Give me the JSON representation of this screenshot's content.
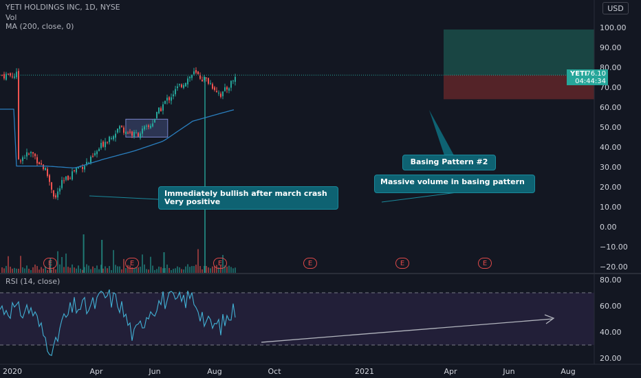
{
  "legend": {
    "symbol_line": "YETI HOLDINGS INC, 1D, NYSE",
    "vol_line": "Vol",
    "ma_line": "MA (200, close, 0)",
    "rsi_line": "RSI (14, close)"
  },
  "currency": "USD",
  "price_tag": {
    "symbol": "YETI",
    "price": "76.10",
    "countdown": "04:44:34"
  },
  "annotations": {
    "basing_pattern": "Basing Pattern #2",
    "massive_volume": "Massive volume in basing pattern",
    "bullish_line1": "Immediately bullish after march crash",
    "bullish_line2": "Very positive"
  },
  "earnings_marker": "E",
  "colors": {
    "up": "#26a69a",
    "down": "#ef5350",
    "ma": "#2a7fbf",
    "rsi": "#42b2d6",
    "background": "#131722"
  },
  "chart_data": [
    {
      "type": "line",
      "title": "YETI HOLDINGS INC, 1D, NYSE",
      "series": [
        {
          "name": "YETI",
          "x": [
            "2020-01",
            "2020-02",
            "2020-03",
            "2020-03-20",
            "2020-04",
            "2020-05",
            "2020-06",
            "2020-07",
            "2020-08",
            "2020-09",
            "2020-10",
            "2020-11",
            "2020-12",
            "2021-01",
            "2021-02",
            "2021-03",
            "2021-04"
          ],
          "values": [
            34,
            37,
            28,
            14,
            21,
            29,
            33,
            43,
            50,
            46,
            50,
            62,
            70,
            77,
            73,
            66,
            76.1
          ]
        },
        {
          "name": "MA (200, close, 0)",
          "x": [
            "2020-01",
            "2020-03",
            "2020-05",
            "2020-07",
            "2020-09",
            "2020-11",
            "2021-01",
            "2021-03",
            "2021-04"
          ],
          "values": [
            30.5,
            30.5,
            29.5,
            34,
            38,
            43,
            53,
            57,
            59
          ]
        }
      ],
      "xticks": [
        "2020",
        "Apr",
        "Jun",
        "Aug",
        "Oct",
        "2021",
        "Apr",
        "Jun",
        "Aug"
      ],
      "yticks": [
        "100.00",
        "90.00",
        "80.00",
        "70.00",
        "60.00",
        "50.00",
        "40.00",
        "30.00",
        "20.00",
        "10.00",
        "0.00",
        "−10.00",
        "−20.00"
      ],
      "ylim": [
        -20,
        100
      ],
      "current_price": 76.1,
      "position": {
        "entry": 76.1,
        "target": 99,
        "stop": 64
      },
      "grid": false
    },
    {
      "type": "line",
      "title": "RSI (14, close)",
      "series": [
        {
          "name": "RSI",
          "x": [
            "2020-01",
            "2020-02",
            "2020-03",
            "2020-03-20",
            "2020-04",
            "2020-05",
            "2020-06",
            "2020-07",
            "2020-08",
            "2020-09",
            "2020-10",
            "2020-11",
            "2020-12",
            "2021-01",
            "2021-02",
            "2021-03",
            "2021-04"
          ],
          "values": [
            55,
            58,
            35,
            24,
            45,
            60,
            58,
            68,
            63,
            36,
            56,
            65,
            63,
            67,
            45,
            45,
            58
          ]
        }
      ],
      "yticks": [
        "80.00",
        "60.00",
        "40.00",
        "20.00"
      ],
      "ylim": [
        20,
        80
      ],
      "bands": [
        30,
        70
      ]
    }
  ]
}
